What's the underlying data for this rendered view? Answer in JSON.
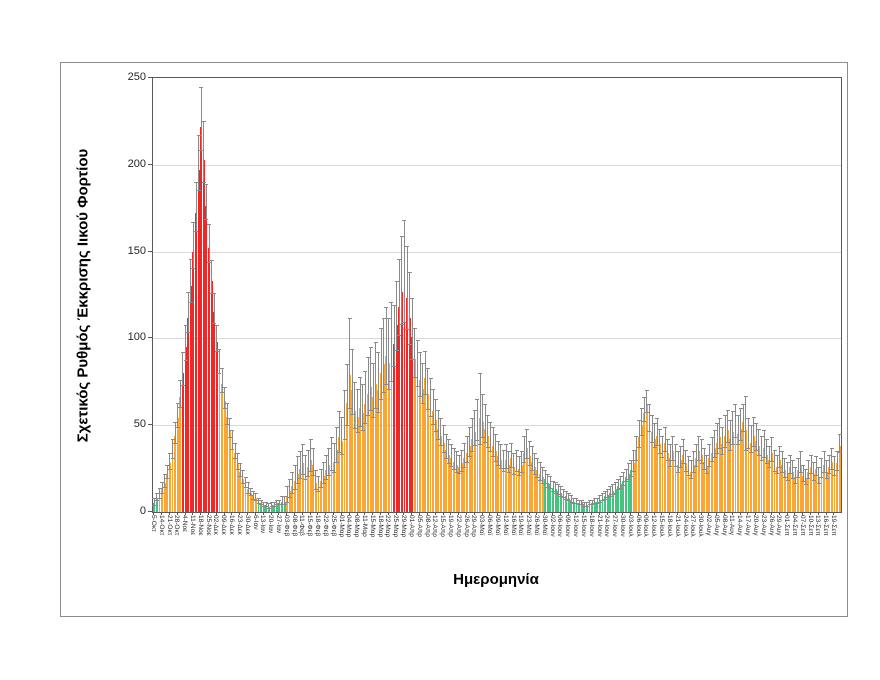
{
  "figure": {
    "y_axis_title": "Σχετικός Ρυθμός Έκκρισης Ιικού Φορτίου",
    "x_axis_title": "Ημερομηνία"
  },
  "chart_data": {
    "type": "bar",
    "title": "",
    "xlabel": "Ημερομηνία",
    "ylabel": "Σχετικός Ρυθμός Έκκρισης Ιικού Φορτίου",
    "ylim": [
      0,
      250
    ],
    "yticks": [
      0,
      50,
      100,
      150,
      200,
      250
    ],
    "grid": true,
    "legend": false,
    "error_bars": "upper whiskers with caps, gray",
    "label_step": 3,
    "x_tick_labels": [
      "5-Οκτ",
      "14-Οκτ",
      "21-Οκτ",
      "28-Οκτ",
      "4-Νοε",
      "11-Νοε",
      "18-Νοε",
      "25-Νοε",
      "02-Δεκ",
      "09-Δεκ",
      "16-Δεκ",
      "23-Δεκ",
      "30-Δεκ",
      "6-Ιαν",
      "13-Ιαν",
      "20-Ιαν",
      "27-Ιαν",
      "03-Φεβ",
      "08-Φεβ",
      "11-Φεβ",
      "15-Φεβ",
      "18-Φεβ",
      "22-Φεβ",
      "25-Φεβ",
      "01-Μαρ",
      "04-Μαρ",
      "08-Μαρ",
      "11-Μαρ",
      "15-Μαρ",
      "18-Μαρ",
      "22-Μαρ",
      "25-Μαρ",
      "29-Μαρ",
      "01-Απρ",
      "05-Απρ",
      "08-Απρ",
      "12-Απρ",
      "15-Απρ",
      "19-Απρ",
      "22-Απρ",
      "26-Απρ",
      "29-Απρ",
      "03-Μαϊ",
      "06-Μαϊ",
      "09-Μαϊ",
      "12-Μαϊ",
      "16-Μαϊ",
      "19-Μαϊ",
      "23-Μαϊ",
      "26-Μαϊ",
      "30-Μαϊ",
      "02-Ιουν",
      "06-Ιουν",
      "09-Ιουν",
      "12-Ιουν",
      "15-Ιουν",
      "18-Ιουν",
      "21-Ιουν",
      "24-Ιουν",
      "27-Ιουν",
      "30-Ιουν",
      "03-Ιουλ",
      "06-Ιουλ",
      "09-Ιουλ",
      "12-Ιουλ",
      "15-Ιουλ",
      "18-Ιουλ",
      "21-Ιουλ",
      "24-Ιουλ",
      "27-Ιουλ",
      "30-Ιουλ",
      "02-Αυγ",
      "05-Αυγ",
      "08-Αυγ",
      "11-Αυγ",
      "14-Αυγ",
      "17-Αυγ",
      "20-Αυγ",
      "23-Αυγ",
      "26-Αυγ",
      "29-Αυγ",
      "01-Σεπ",
      "04-Σεπ",
      "07-Σεπ",
      "10-Σεπ",
      "13-Σεπ",
      "16-Σεπ",
      "19-Σεπ"
    ],
    "values": [
      5,
      8,
      10,
      13,
      17,
      22,
      28,
      35,
      44,
      54,
      66,
      80,
      95,
      112,
      130,
      150,
      172,
      197,
      222,
      203,
      176,
      152,
      133,
      115,
      98,
      85,
      74,
      64,
      55,
      47,
      40,
      34,
      28,
      23,
      19,
      16,
      13,
      11,
      9,
      8,
      6,
      5,
      4,
      4,
      3,
      4,
      4,
      5,
      5,
      6,
      6,
      9,
      12,
      15,
      18,
      22,
      25,
      28,
      24,
      26,
      30,
      27,
      17,
      15,
      18,
      21,
      24,
      27,
      31,
      29,
      36,
      43,
      41,
      52,
      63,
      79,
      70,
      58,
      55,
      60,
      57,
      62,
      68,
      72,
      66,
      74,
      70,
      80,
      85,
      90,
      86,
      92,
      97,
      108,
      118,
      127,
      131,
      123,
      112,
      101,
      88,
      82,
      76,
      71,
      77,
      68,
      63,
      58,
      53,
      48,
      44,
      40,
      36,
      33,
      31,
      29,
      27,
      26,
      28,
      31,
      34,
      38,
      42,
      46,
      50,
      54,
      52,
      48,
      44,
      41,
      38,
      35,
      32,
      30,
      28,
      30,
      27,
      31,
      26,
      28,
      25,
      27,
      34,
      37,
      32,
      29,
      26,
      24,
      22,
      20,
      19,
      17,
      16,
      14,
      13,
      12,
      11,
      10,
      9,
      8,
      7,
      6,
      6,
      5,
      5,
      4,
      4,
      5,
      5,
      6,
      6,
      7,
      8,
      9,
      10,
      11,
      12,
      13,
      15,
      16,
      18,
      20,
      22,
      24,
      28,
      35,
      43,
      50,
      57,
      62,
      52,
      46,
      42,
      44,
      39,
      36,
      40,
      34,
      31,
      35,
      31,
      27,
      30,
      33,
      28,
      25,
      23,
      27,
      31,
      35,
      33,
      29,
      26,
      31,
      34,
      37,
      40,
      43,
      39,
      44,
      47,
      42,
      46,
      50,
      45,
      48,
      52,
      47,
      43,
      40,
      44,
      41,
      38,
      35,
      37,
      33,
      30,
      34,
      28,
      26,
      30,
      27,
      24,
      22,
      26,
      23,
      20,
      24,
      27,
      21,
      19,
      23,
      26,
      22,
      25,
      20,
      24,
      27,
      23,
      26,
      29,
      25,
      28,
      38
    ],
    "error_upper": [
      3,
      3,
      4,
      4,
      5,
      5,
      6,
      7,
      8,
      9,
      10,
      12,
      13,
      15,
      16,
      17,
      18,
      20,
      23,
      22,
      13,
      14,
      12,
      11,
      10,
      9,
      9,
      8,
      8,
      7,
      7,
      6,
      6,
      5,
      5,
      4,
      4,
      3,
      3,
      3,
      2,
      2,
      2,
      2,
      2,
      2,
      2,
      2,
      2,
      3,
      3,
      6,
      7,
      8,
      9,
      10,
      10,
      11,
      9,
      10,
      12,
      10,
      7,
      6,
      7,
      8,
      9,
      10,
      12,
      11,
      13,
      15,
      14,
      18,
      22,
      33,
      24,
      17,
      16,
      18,
      17,
      19,
      21,
      23,
      20,
      24,
      22,
      26,
      27,
      28,
      26,
      29,
      22,
      25,
      28,
      32,
      37,
      30,
      26,
      22,
      18,
      17,
      16,
      15,
      16,
      15,
      14,
      13,
      12,
      11,
      10,
      10,
      9,
      9,
      8,
      8,
      8,
      7,
      8,
      9,
      10,
      11,
      12,
      13,
      15,
      26,
      16,
      14,
      12,
      11,
      11,
      10,
      9,
      9,
      8,
      9,
      8,
      9,
      8,
      8,
      7,
      8,
      10,
      11,
      9,
      9,
      8,
      7,
      7,
      6,
      5,
      5,
      5,
      4,
      4,
      4,
      4,
      3,
      3,
      3,
      3,
      2,
      2,
      2,
      2,
      2,
      2,
      2,
      2,
      2,
      2,
      3,
      3,
      3,
      3,
      4,
      4,
      4,
      4,
      5,
      5,
      5,
      6,
      6,
      8,
      9,
      10,
      10,
      9,
      8,
      10,
      10,
      9,
      10,
      9,
      8,
      9,
      8,
      8,
      9,
      8,
      8,
      8,
      9,
      8,
      7,
      7,
      8,
      8,
      9,
      9,
      8,
      7,
      8,
      9,
      10,
      11,
      11,
      10,
      12,
      12,
      11,
      12,
      12,
      11,
      12,
      10,
      20,
      11,
      10,
      11,
      10,
      10,
      9,
      10,
      9,
      8,
      9,
      8,
      7,
      8,
      8,
      7,
      7,
      7,
      7,
      6,
      7,
      8,
      6,
      6,
      7,
      7,
      7,
      7,
      6,
      7,
      8,
      7,
      7,
      8,
      7,
      7,
      7
    ],
    "color_segments": [
      {
        "from": 0,
        "to": 1,
        "color": "green"
      },
      {
        "from": 2,
        "to": 10,
        "color": "orange"
      },
      {
        "from": 11,
        "to": 24,
        "color": "red"
      },
      {
        "from": 25,
        "to": 39,
        "color": "orange"
      },
      {
        "from": 40,
        "to": 50,
        "color": "green"
      },
      {
        "from": 51,
        "to": 91,
        "color": "orange"
      },
      {
        "from": 92,
        "to": 99,
        "color": "red"
      },
      {
        "from": 100,
        "to": 149,
        "color": "orange"
      },
      {
        "from": 150,
        "to": 183,
        "color": "green"
      },
      {
        "from": 184,
        "to": 263,
        "color": "orange"
      }
    ],
    "palette": {
      "red": "#f42525",
      "orange": "#faa634",
      "green": "#44c47e",
      "error_bar": "#8a8a8a",
      "gridline": "#d9d9d9",
      "axis": "#595959"
    }
  }
}
